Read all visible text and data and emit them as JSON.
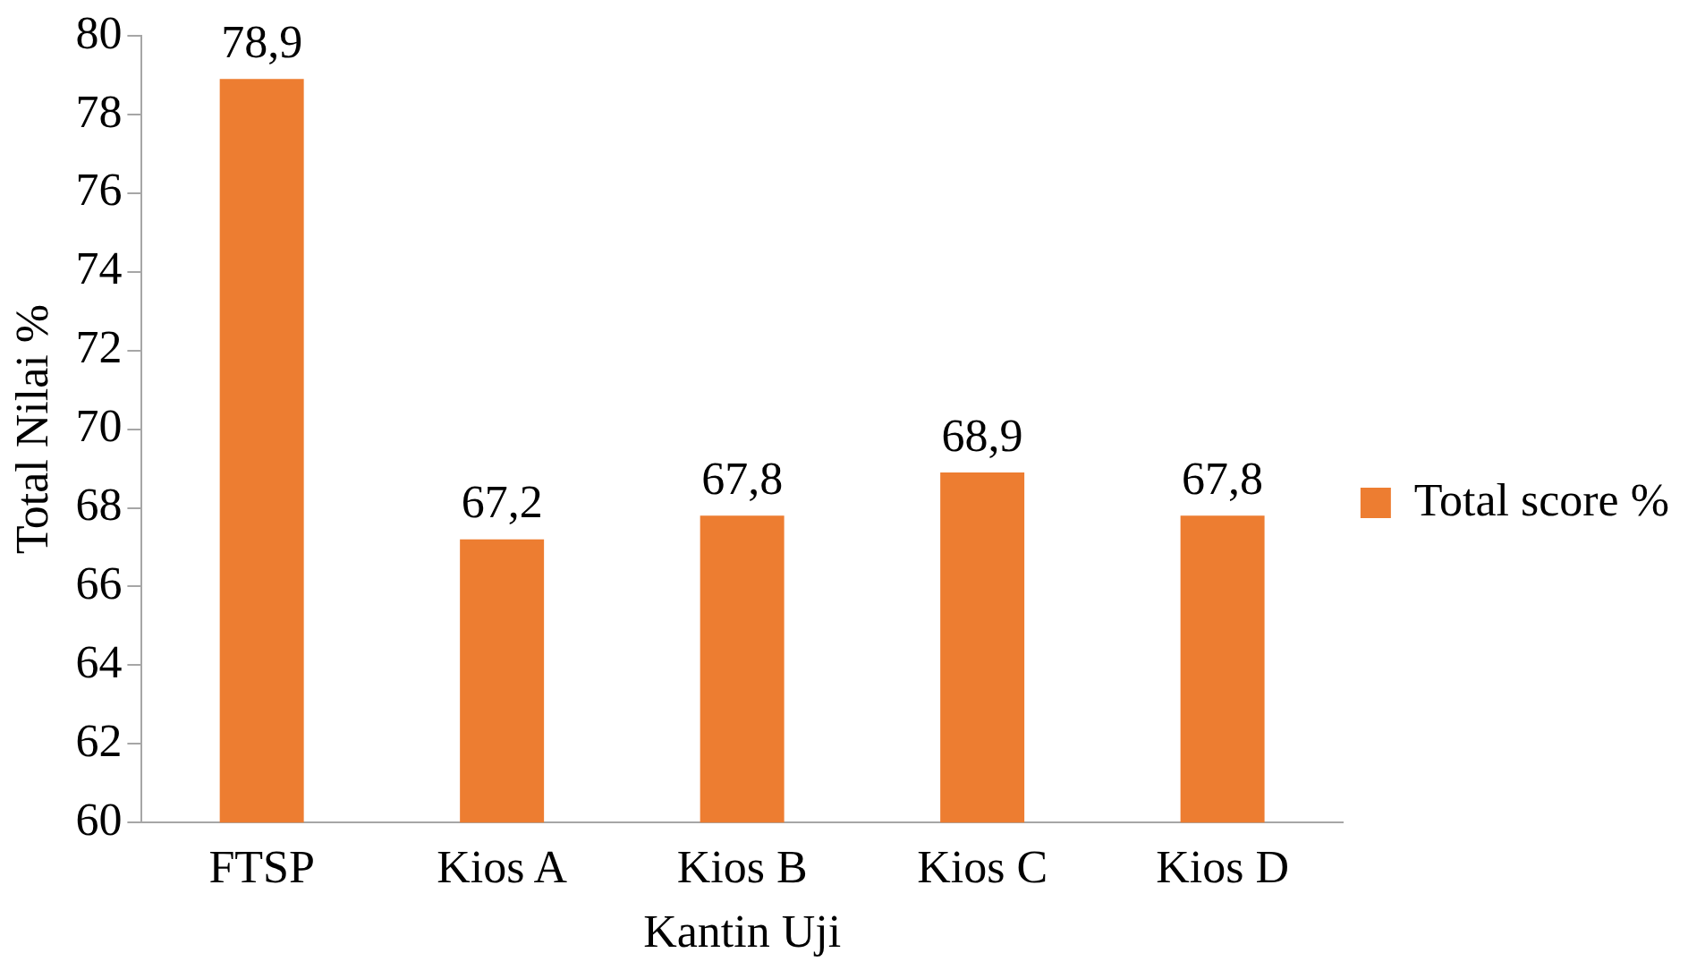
{
  "chart_data": {
    "type": "bar",
    "xlabel": "Kantin Uji",
    "ylabel": "Total Nilai %",
    "categories": [
      "FTSP",
      "Kios A",
      "Kios B",
      "Kios C",
      "Kios D"
    ],
    "series": [
      {
        "name": "Total score %",
        "color": "#ed7d31",
        "values": [
          78.9,
          67.2,
          67.8,
          68.9,
          67.8
        ],
        "value_labels": [
          "78,9",
          "67,2",
          "67,8",
          "68,9",
          "67,8"
        ]
      }
    ],
    "ylim": [
      60,
      80
    ],
    "yticks": [
      60,
      62,
      64,
      66,
      68,
      70,
      72,
      74,
      76,
      78,
      80
    ],
    "grid": false,
    "legend": "right"
  }
}
